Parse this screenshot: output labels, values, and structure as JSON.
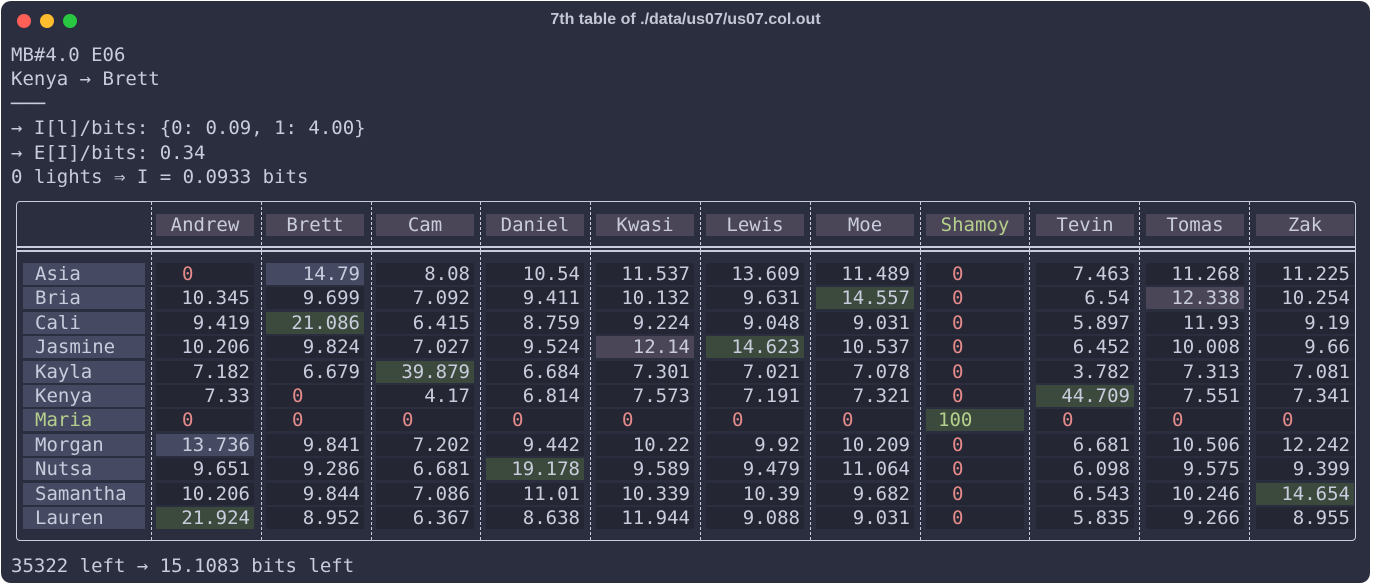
{
  "window": {
    "title": "7th table of ./data/us07/us07.col.out"
  },
  "lines": [
    "MB#4.0 E06",
    "Kenya → Brett",
    "───",
    "→ I[l]/bits: {0: 0.09, 1: 4.00}",
    "→ E[I]/bits: 0.34",
    "0 lights ⇒ I = 0.0933 bits"
  ],
  "footer": "35322 left → 15.1083 bits left",
  "columns": [
    "Andrew",
    "Brett",
    "Cam",
    "Daniel",
    "Kwasi",
    "Lewis",
    "Moe",
    "Shamoy",
    "Tevin",
    "Tomas",
    "Zak"
  ],
  "highlight_column": 7,
  "rows": [
    {
      "name": "Asia",
      "values": [
        "0",
        "14.79",
        "8.08",
        "10.54",
        "11.537",
        "13.609",
        "11.489",
        "0",
        "7.463",
        "11.268",
        "11.225"
      ]
    },
    {
      "name": "Bria",
      "values": [
        "10.345",
        "9.699",
        "7.092",
        "9.411",
        "10.132",
        "9.631",
        "14.557",
        "0",
        "6.54",
        "12.338",
        "10.254"
      ]
    },
    {
      "name": "Cali",
      "values": [
        "9.419",
        "21.086",
        "6.415",
        "8.759",
        "9.224",
        "9.048",
        "9.031",
        "0",
        "5.897",
        "11.93",
        "9.19"
      ]
    },
    {
      "name": "Jasmine",
      "values": [
        "10.206",
        "9.824",
        "7.027",
        "9.524",
        "12.14",
        "14.623",
        "10.537",
        "0",
        "6.452",
        "10.008",
        "9.66"
      ]
    },
    {
      "name": "Kayla",
      "values": [
        "7.182",
        "6.679",
        "39.879",
        "6.684",
        "7.301",
        "7.021",
        "7.078",
        "0",
        "3.782",
        "7.313",
        "7.081"
      ]
    },
    {
      "name": "Kenya",
      "values": [
        "7.33",
        "0",
        "4.17",
        "6.814",
        "7.573",
        "7.191",
        "7.321",
        "0",
        "44.709",
        "7.551",
        "7.341"
      ]
    },
    {
      "name": "Maria",
      "values": [
        "0",
        "0",
        "0",
        "0",
        "0",
        "0",
        "0",
        "100",
        "0",
        "0",
        "0"
      ]
    },
    {
      "name": "Morgan",
      "values": [
        "13.736",
        "9.841",
        "7.202",
        "9.442",
        "10.22",
        "9.92",
        "10.209",
        "0",
        "6.681",
        "10.506",
        "12.242"
      ]
    },
    {
      "name": "Nutsa",
      "values": [
        "9.651",
        "9.286",
        "6.681",
        "19.178",
        "9.589",
        "9.479",
        "11.064",
        "0",
        "6.098",
        "9.575",
        "9.399"
      ]
    },
    {
      "name": "Samantha",
      "values": [
        "10.206",
        "9.844",
        "7.086",
        "11.01",
        "10.339",
        "10.39",
        "9.682",
        "0",
        "6.543",
        "10.246",
        "14.654"
      ]
    },
    {
      "name": "Lauren",
      "values": [
        "21.924",
        "8.952",
        "6.367",
        "8.638",
        "11.944",
        "9.088",
        "9.031",
        "0",
        "5.835",
        "9.266",
        "8.955"
      ]
    }
  ],
  "highlight_row": 6,
  "cell_highlights": [
    {
      "row": 0,
      "col": 1,
      "color": "blue"
    },
    {
      "row": 1,
      "col": 6,
      "color": "green"
    },
    {
      "row": 1,
      "col": 9,
      "color": "purple"
    },
    {
      "row": 2,
      "col": 1,
      "color": "green"
    },
    {
      "row": 3,
      "col": 4,
      "color": "purple"
    },
    {
      "row": 3,
      "col": 5,
      "color": "green"
    },
    {
      "row": 4,
      "col": 2,
      "color": "green"
    },
    {
      "row": 5,
      "col": 8,
      "color": "green"
    },
    {
      "row": 6,
      "col": 7,
      "color": "green"
    },
    {
      "row": 7,
      "col": 0,
      "color": "blue"
    },
    {
      "row": 8,
      "col": 3,
      "color": "green"
    },
    {
      "row": 9,
      "col": 10,
      "color": "green"
    },
    {
      "row": 10,
      "col": 0,
      "color": "green"
    }
  ],
  "colors": {
    "background": "#2b2e3e",
    "text": "#c8ccdc",
    "zero": "#e48a8a",
    "highlight_text": "#b5cf8c",
    "cell_blue": "#454a62",
    "cell_green": "#3c4a3e",
    "cell_purple": "#4a4658"
  }
}
